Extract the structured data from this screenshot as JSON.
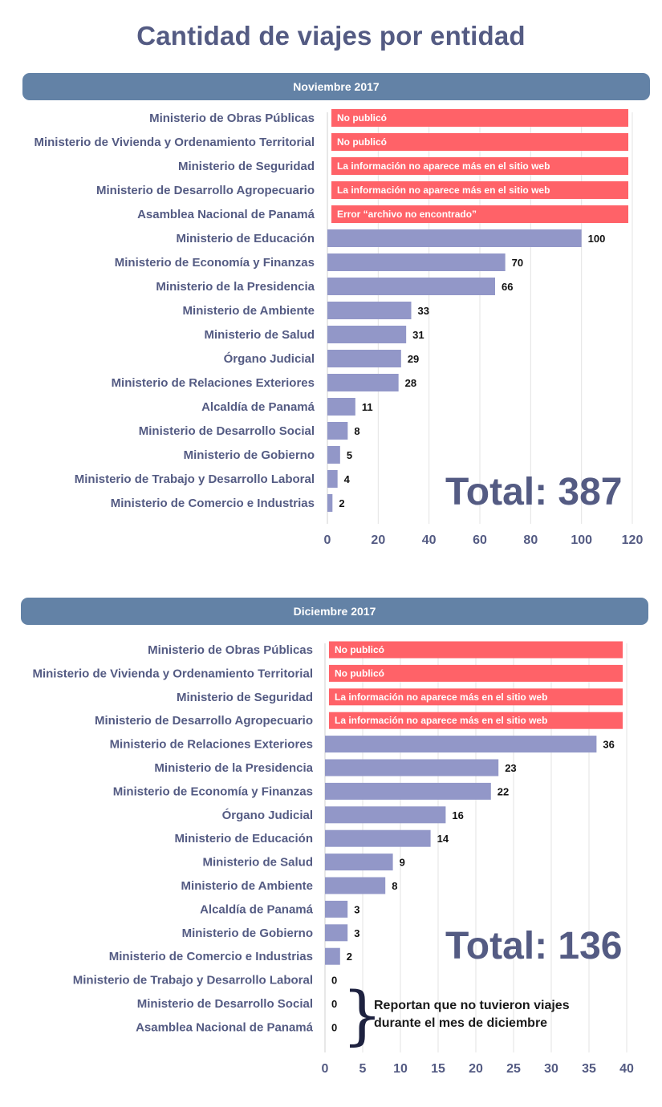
{
  "page": {
    "title": "Cantidad de viajes por entidad"
  },
  "charts": [
    {
      "period": "Noviembre 2017",
      "total_label": "Total: 387",
      "chart_data": {
        "type": "bar",
        "orientation": "horizontal",
        "xlim": [
          0,
          120
        ],
        "xticks": [
          0,
          20,
          40,
          60,
          80,
          100,
          120
        ],
        "grid": true,
        "colors": {
          "bar": "#9297c8",
          "unpublished": "#ff6268"
        },
        "rows": [
          {
            "label": "Ministerio de Obras Públicas",
            "status": "No publicó"
          },
          {
            "label": "Ministerio de Vivienda y Ordenamiento Territorial",
            "status": "No publicó"
          },
          {
            "label": "Ministerio de Seguridad",
            "status": "La información no aparece más en el sitio web"
          },
          {
            "label": "Ministerio de Desarrollo Agropecuario",
            "status": "La información no aparece más en el sitio web"
          },
          {
            "label": "Asamblea Nacional de Panamá",
            "status": "Error “archivo no encontrado”"
          },
          {
            "label": "Ministerio de Educación",
            "value": 100
          },
          {
            "label": "Ministerio de Economía y Finanzas",
            "value": 70
          },
          {
            "label": "Ministerio de la Presidencia",
            "value": 66
          },
          {
            "label": "Ministerio de Ambiente",
            "value": 33
          },
          {
            "label": "Ministerio de Salud",
            "value": 31
          },
          {
            "label": "Órgano Judicial",
            "value": 29
          },
          {
            "label": "Ministerio de Relaciones Exteriores",
            "value": 28
          },
          {
            "label": "Alcaldía de Panamá",
            "value": 11
          },
          {
            "label": "Ministerio de Desarrollo Social",
            "value": 8
          },
          {
            "label": "Ministerio de Gobierno",
            "value": 5
          },
          {
            "label": "Ministerio de Trabajo y Desarrollo Laboral",
            "value": 4
          },
          {
            "label": "Ministerio de Comercio e Industrias",
            "value": 2
          }
        ]
      }
    },
    {
      "period": "Diciembre 2017",
      "total_label": "Total: 136",
      "note": "Reportan que no tuvieron viajes durante el mes de diciembre",
      "chart_data": {
        "type": "bar",
        "orientation": "horizontal",
        "xlim": [
          0,
          40
        ],
        "xticks": [
          0,
          5,
          10,
          15,
          20,
          25,
          30,
          35,
          40
        ],
        "grid": true,
        "colors": {
          "bar": "#9297c8",
          "unpublished": "#ff6268"
        },
        "rows": [
          {
            "label": "Ministerio de Obras Públicas",
            "status": "No publicó"
          },
          {
            "label": "Ministerio de Vivienda y Ordenamiento Territorial",
            "status": "No publicó"
          },
          {
            "label": "Ministerio de Seguridad",
            "status": "La información no aparece más en el sitio web"
          },
          {
            "label": "Ministerio de Desarrollo Agropecuario",
            "status": "La información no aparece más en el sitio web"
          },
          {
            "label": "Ministerio de Relaciones Exteriores",
            "value": 36
          },
          {
            "label": "Ministerio de la Presidencia",
            "value": 23
          },
          {
            "label": "Ministerio de Economía y Finanzas",
            "value": 22
          },
          {
            "label": "Órgano Judicial",
            "value": 16
          },
          {
            "label": "Ministerio de Educación",
            "value": 14
          },
          {
            "label": "Ministerio de Salud",
            "value": 9
          },
          {
            "label": "Ministerio de Ambiente",
            "value": 8
          },
          {
            "label": "Alcaldía de Panamá",
            "value": 3
          },
          {
            "label": "Ministerio de Gobierno",
            "value": 3
          },
          {
            "label": "Ministerio de Comercio e Industrias",
            "value": 2
          },
          {
            "label": "Ministerio de Trabajo y Desarrollo Laboral",
            "value": 0
          },
          {
            "label": "Ministerio de Desarrollo Social",
            "value": 0
          },
          {
            "label": "Asamblea Nacional de Panamá",
            "value": 0
          }
        ]
      }
    }
  ]
}
